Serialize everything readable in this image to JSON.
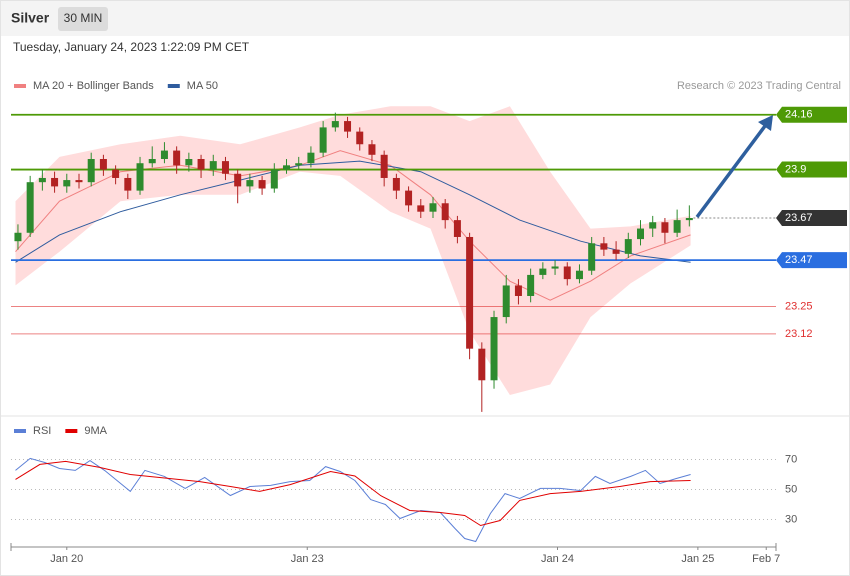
{
  "header": {
    "title": "Silver",
    "timeframe": "30 MIN",
    "timestamp": "Tuesday, January 24, 2023 1:22:09 PM CET"
  },
  "chart_data": [
    {
      "type": "candlestick",
      "source": "Research © 2023 Trading Central",
      "up_color": "#2e8b2e",
      "down_color": "#b22222",
      "xlim": [
        -0.57,
        62.1
      ],
      "ylim": [
        22.74,
        24.23
      ],
      "x": [
        0,
        1,
        2,
        3,
        4,
        5,
        6,
        7,
        8,
        9,
        10,
        11,
        12,
        13,
        14,
        15,
        16,
        17,
        18,
        19,
        20,
        21,
        22,
        23,
        24,
        25,
        26,
        27,
        28,
        29,
        30,
        31,
        32,
        33,
        34,
        35,
        36,
        37,
        38,
        39,
        40,
        41,
        42,
        43,
        44,
        45,
        46,
        47,
        48,
        49,
        50,
        51,
        52,
        53,
        54,
        55
      ],
      "open": [
        23.56,
        23.6,
        23.84,
        23.86,
        23.82,
        23.85,
        23.84,
        23.95,
        23.9,
        23.86,
        23.8,
        23.93,
        23.95,
        23.99,
        23.92,
        23.95,
        23.9,
        23.94,
        23.88,
        23.82,
        23.85,
        23.81,
        23.9,
        23.92,
        23.93,
        23.98,
        24.1,
        24.13,
        24.08,
        24.02,
        23.97,
        23.86,
        23.8,
        23.73,
        23.7,
        23.74,
        23.66,
        23.58,
        23.05,
        22.9,
        23.2,
        23.35,
        23.3,
        23.4,
        23.43,
        23.44,
        23.38,
        23.42,
        23.55,
        23.52,
        23.5,
        23.57,
        23.62,
        23.65,
        23.6,
        23.66
      ],
      "high": [
        23.64,
        23.87,
        23.9,
        23.89,
        23.88,
        23.88,
        23.98,
        23.97,
        23.92,
        23.88,
        23.96,
        24.01,
        24.03,
        24.01,
        23.98,
        23.97,
        23.97,
        23.96,
        23.9,
        23.88,
        23.87,
        23.93,
        23.95,
        23.96,
        24.01,
        24.13,
        24.17,
        24.15,
        24.1,
        24.04,
        23.99,
        23.88,
        23.82,
        23.76,
        23.77,
        23.76,
        23.68,
        23.6,
        23.08,
        23.23,
        23.4,
        23.38,
        23.43,
        23.46,
        23.47,
        23.46,
        23.45,
        23.58,
        23.58,
        23.56,
        23.6,
        23.66,
        23.68,
        23.67,
        23.71,
        23.73
      ],
      "low": [
        23.52,
        23.58,
        23.8,
        23.79,
        23.79,
        23.81,
        23.82,
        23.87,
        23.83,
        23.76,
        23.78,
        23.91,
        23.93,
        23.88,
        23.89,
        23.86,
        23.87,
        23.85,
        23.74,
        23.79,
        23.78,
        23.79,
        23.88,
        23.9,
        23.91,
        23.96,
        24.08,
        24.05,
        23.99,
        23.94,
        23.82,
        23.76,
        23.7,
        23.67,
        23.67,
        23.62,
        23.55,
        23.0,
        22.75,
        22.86,
        23.17,
        23.26,
        23.27,
        23.38,
        23.4,
        23.35,
        23.36,
        23.4,
        23.49,
        23.47,
        23.48,
        23.54,
        23.58,
        23.55,
        23.58,
        23.63
      ],
      "close": [
        23.6,
        23.84,
        23.86,
        23.82,
        23.85,
        23.84,
        23.95,
        23.9,
        23.86,
        23.8,
        23.93,
        23.95,
        23.99,
        23.92,
        23.95,
        23.9,
        23.94,
        23.88,
        23.82,
        23.85,
        23.81,
        23.9,
        23.92,
        23.93,
        23.98,
        24.1,
        24.13,
        24.08,
        24.02,
        23.97,
        23.86,
        23.8,
        23.73,
        23.7,
        23.74,
        23.66,
        23.58,
        23.05,
        22.9,
        23.2,
        23.35,
        23.3,
        23.4,
        23.43,
        23.44,
        23.38,
        23.42,
        23.55,
        23.52,
        23.5,
        23.57,
        23.62,
        23.65,
        23.6,
        23.66,
        23.67
      ],
      "series": [
        {
          "name": "MA 20 + Bollinger Bands",
          "color": "#f08080",
          "band_color": "#ffdcdc",
          "x": [
            -0.2,
            3.4,
            8.4,
            13.3,
            18.2,
            23.1,
            26.4,
            30.5,
            33.8,
            37,
            40.3,
            43.6,
            46.9,
            50.2,
            55.1
          ],
          "values": [
            23.51,
            23.75,
            23.89,
            23.92,
            23.87,
            23.92,
            23.99,
            23.92,
            23.78,
            23.56,
            23.37,
            23.28,
            23.37,
            23.49,
            23.59
          ],
          "upper": [
            23.75,
            23.96,
            24.02,
            24.06,
            24.02,
            24.1,
            24.16,
            24.2,
            24.2,
            24.13,
            24.2,
            23.89,
            23.62,
            23.63,
            23.68
          ],
          "lower": [
            23.35,
            23.51,
            23.75,
            23.78,
            23.78,
            23.89,
            23.87,
            23.7,
            23.62,
            23.13,
            22.83,
            22.88,
            23.2,
            23.36,
            23.54
          ]
        },
        {
          "name": "MA 50",
          "color": "#2f5c9e",
          "x": [
            -0.2,
            3.4,
            8.4,
            13.3,
            18.2,
            23.1,
            28,
            33,
            37,
            41.1,
            46.1,
            51,
            55.1
          ],
          "values": [
            23.46,
            23.59,
            23.7,
            23.78,
            23.85,
            23.92,
            23.94,
            23.89,
            23.78,
            23.66,
            23.56,
            23.49,
            23.46
          ]
        }
      ],
      "levels": [
        {
          "value": 24.16,
          "color": "#4e9a06",
          "style": "box"
        },
        {
          "value": 23.9,
          "color": "#4e9a06",
          "style": "box"
        },
        {
          "value": 23.67,
          "color": "#333333",
          "style": "dotted-box"
        },
        {
          "value": 23.47,
          "color": "#2a6ee0",
          "style": "box"
        },
        {
          "value": 23.25,
          "color": "#e03030",
          "style": "text"
        },
        {
          "value": 23.12,
          "color": "#e03030",
          "style": "text"
        }
      ]
    },
    {
      "type": "line",
      "xlim": [
        -0.57,
        62.1
      ],
      "ylim": [
        13,
        83
      ],
      "yticks": [
        70,
        50,
        30
      ],
      "xticks": [
        {
          "value": 4,
          "label": "Jan 20"
        },
        {
          "value": 23.7,
          "label": "Jan 23"
        },
        {
          "value": 44.2,
          "label": "Jan 24"
        },
        {
          "value": 55.7,
          "label": "Jan 25"
        },
        {
          "value": 61.3,
          "label": "Feb 7"
        }
      ],
      "series": [
        {
          "name": "RSI",
          "color": "#5b7fd6",
          "x": [
            -0.2,
            1,
            2.2,
            3.4,
            4.7,
            5.9,
            7.1,
            9.2,
            10.4,
            12,
            13.7,
            15.3,
            17.4,
            19,
            20.7,
            22.3,
            23.9,
            25.2,
            26.4,
            27.6,
            28.9,
            30.1,
            31.3,
            33,
            34.6,
            35.8,
            36.6,
            37.5,
            38.7,
            39.9,
            41.1,
            42.8,
            44.4,
            46.1,
            47.3,
            48.5,
            50.2,
            51.4,
            52.6,
            53.9,
            55.1
          ],
          "values": [
            62.7,
            70.7,
            68,
            64,
            62.7,
            69.3,
            62.7,
            48.7,
            62.7,
            58.7,
            50.7,
            58,
            46,
            52,
            52.7,
            55.3,
            56,
            65.3,
            62,
            56,
            43.3,
            40,
            30.7,
            36,
            34.7,
            24,
            17.3,
            15.3,
            34,
            47.3,
            44,
            50.7,
            50.7,
            49.3,
            58.7,
            54,
            58.7,
            62.7,
            54,
            57.3,
            60
          ]
        },
        {
          "name": "9MA",
          "color": "#e00000",
          "x": [
            -0.2,
            1.8,
            3.9,
            6.7,
            9.2,
            11.6,
            14.9,
            17.4,
            19.8,
            22.3,
            25.6,
            27.6,
            29.7,
            32.1,
            34.6,
            36.6,
            37.9,
            39.5,
            41.1,
            43.6,
            46.1,
            49.3,
            51.8,
            55.1
          ],
          "values": [
            56.7,
            66.7,
            68.7,
            64.7,
            60,
            58,
            55.3,
            52,
            48.7,
            53.3,
            62,
            59,
            46,
            36,
            34.7,
            32.7,
            26,
            29.3,
            42.7,
            47.3,
            48.7,
            52,
            55.3,
            56
          ]
        }
      ]
    }
  ]
}
